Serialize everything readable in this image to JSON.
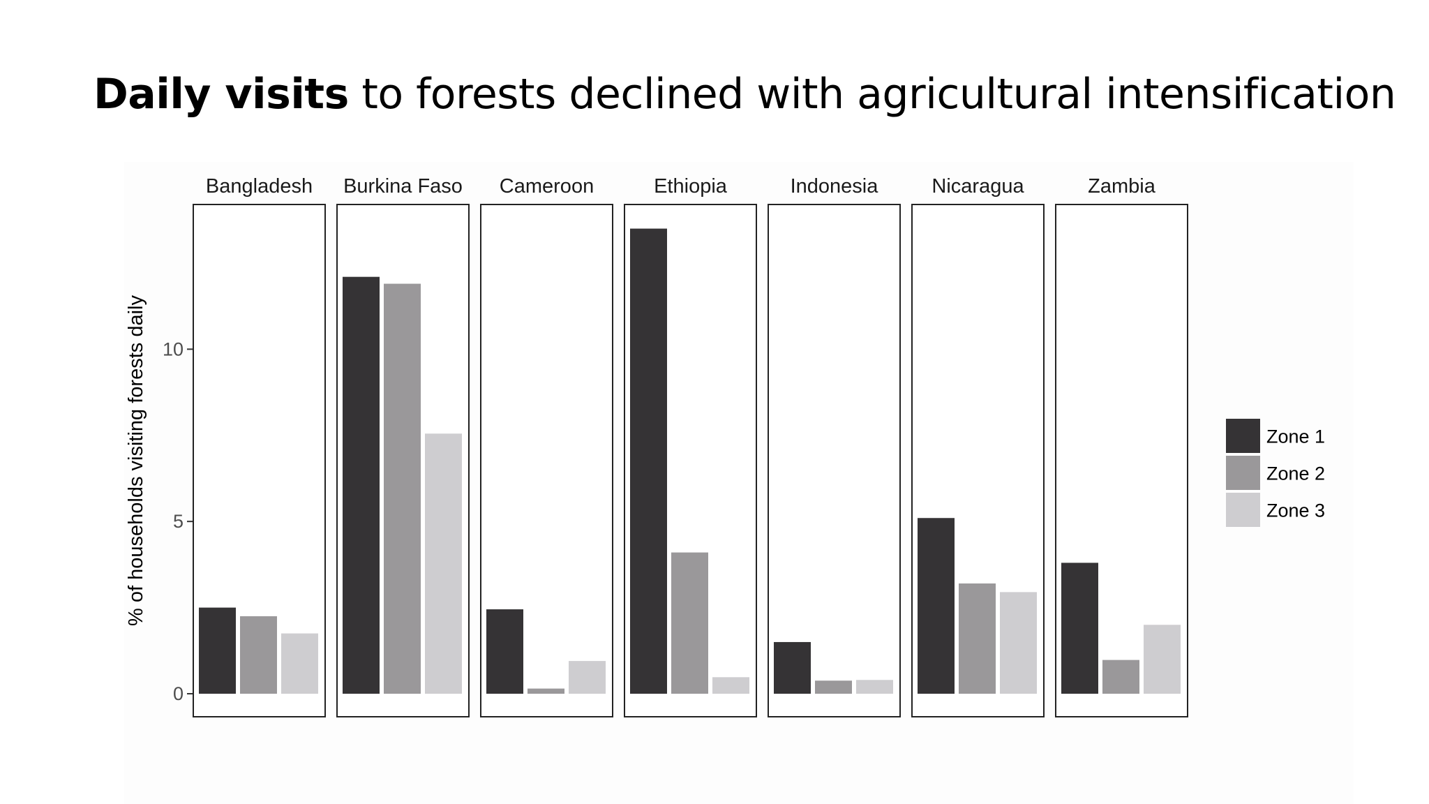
{
  "slide": {
    "title_bold": "Daily visits",
    "title_rest": " to forests declined with agricultural intensification"
  },
  "chart_data": {
    "type": "bar",
    "title": "",
    "xlabel": "",
    "ylabel": "% of households visiting forests daily",
    "ylim": [
      0,
      14.2
    ],
    "yticks": [
      0,
      5,
      10
    ],
    "grid": false,
    "legend_position": "right",
    "panels": [
      "Bangladesh",
      "Burkina Faso",
      "Cameroon",
      "Ethiopia",
      "Indonesia",
      "Nicaragua",
      "Zambia"
    ],
    "series": [
      {
        "name": "Zone 1",
        "color": "#353335",
        "values": [
          2.5,
          12.1,
          2.45,
          13.5,
          1.5,
          5.1,
          3.8
        ]
      },
      {
        "name": "Zone 2",
        "color": "#9a989a",
        "values": [
          2.25,
          11.9,
          0.15,
          4.1,
          0.38,
          3.2,
          0.98
        ]
      },
      {
        "name": "Zone 3",
        "color": "#cecdd0",
        "values": [
          1.75,
          7.55,
          0.95,
          0.48,
          0.4,
          2.95,
          2.0
        ]
      }
    ]
  }
}
